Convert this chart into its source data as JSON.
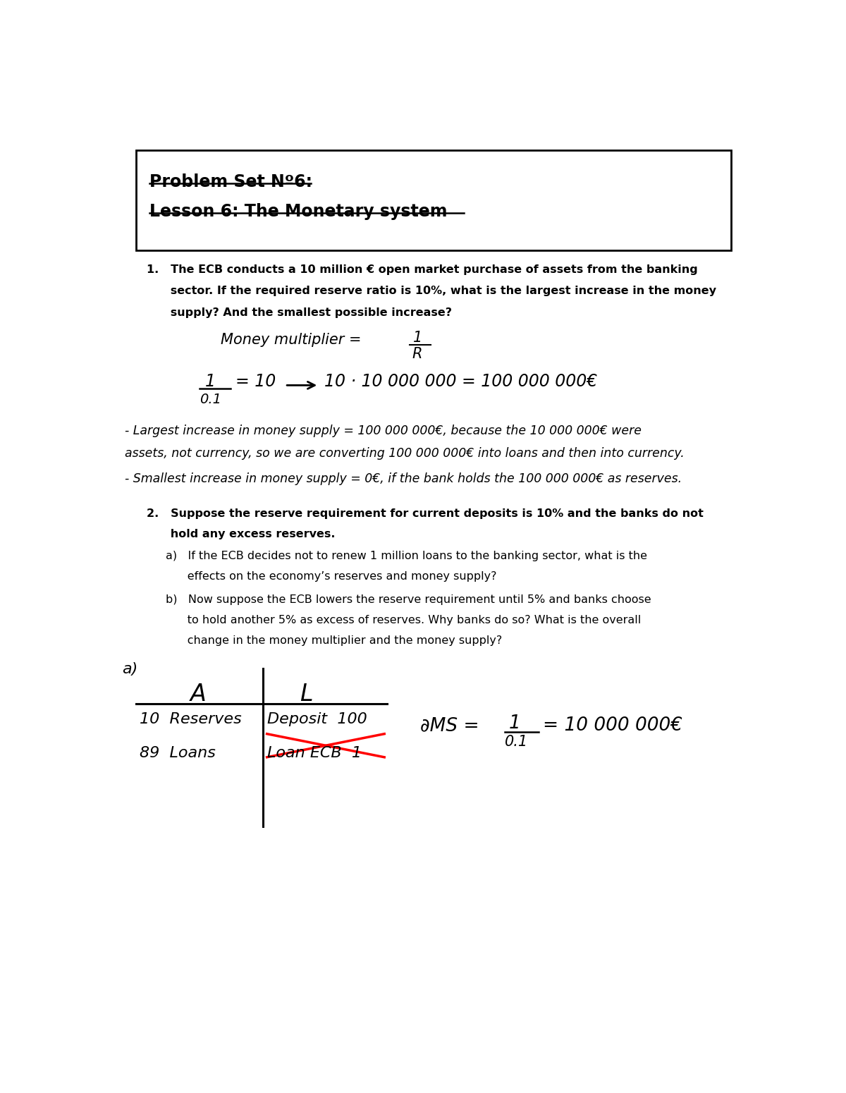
{
  "bg_color": "#ffffff",
  "title_line1": "Problem Set Nº6:",
  "title_line2": "Lesson 6: The Monetary system",
  "q1_text_line1": "1.   The ECB conducts a 10 million € open market purchase of assets from the banking",
  "q1_text_line2": "      sector. If the required reserve ratio is 10%, what is the largest increase in the money",
  "q1_text_line3": "      supply? And the smallest possible increase?",
  "bullet1_line1": "- Largest increase in money supply = 100 000 000€, because the 10 000 000€ were",
  "bullet1_line2": "assets, not currency, so we are converting 100 000 000€ into loans and then into currency.",
  "bullet2": "- Smallest increase in money supply = 0€, if the bank holds the 100 000 000€ as reserves.",
  "q2_line1": "2.   Suppose the reserve requirement for current deposits is 10% and the banks do not",
  "q2_line2": "      hold any excess reserves.",
  "q2a_line1": "a)   If the ECB decides not to renew 1 million loans to the banking sector, what is the",
  "q2a_line2": "      effects on the economy’s reserves and money supply?",
  "q2b_line1": "b)   Now suppose the ECB lowers the reserve requirement until 5% and banks choose",
  "q2b_line2": "      to hold another 5% as excess of reserves. Why banks do so? What is the overall",
  "q2b_line3": "      change in the money multiplier and the money supply?",
  "label_a": "a)",
  "table_A": "A",
  "table_L": "L",
  "table_row1_left": "10  Reserves",
  "table_row1_right": "Deposit  100",
  "table_row2_left": "89  Loans",
  "table_row2_right": "Loan ECB  1"
}
